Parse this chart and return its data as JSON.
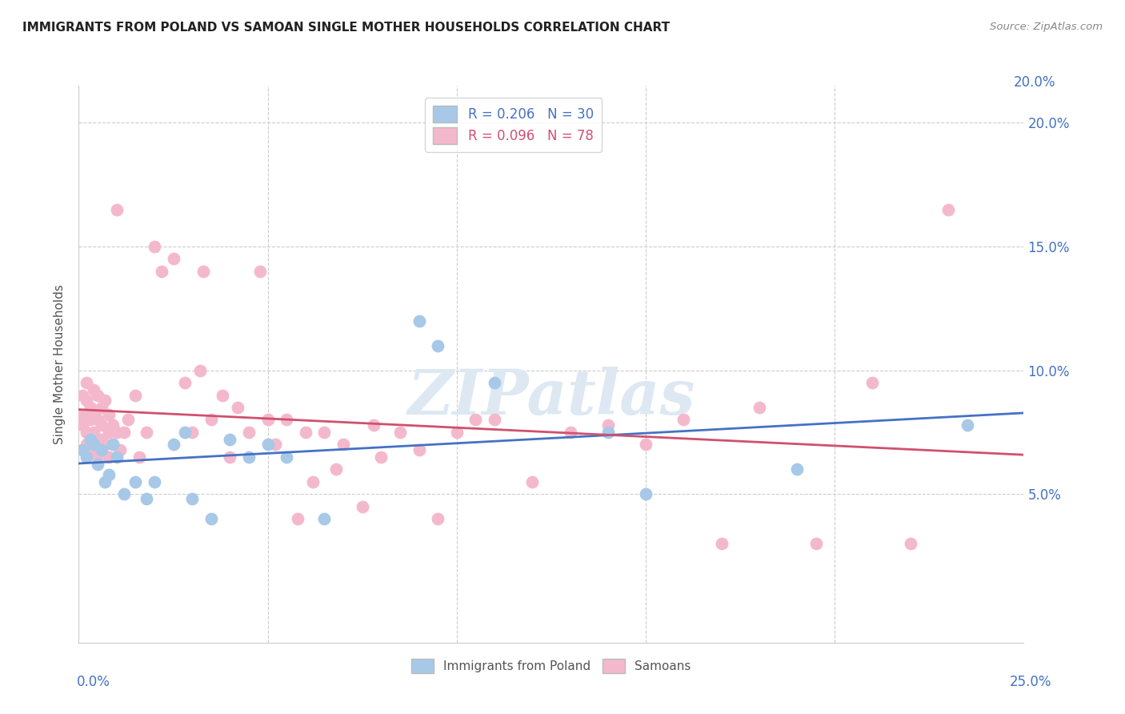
{
  "title": "IMMIGRANTS FROM POLAND VS SAMOAN SINGLE MOTHER HOUSEHOLDS CORRELATION CHART",
  "source": "Source: ZipAtlas.com",
  "ylabel": "Single Mother Households",
  "xlim": [
    0.0,
    0.25
  ],
  "ylim": [
    -0.01,
    0.215
  ],
  "xticks": [
    0.0,
    0.05,
    0.1,
    0.15,
    0.2,
    0.25
  ],
  "yticks": [
    0.05,
    0.1,
    0.15,
    0.2
  ],
  "right_yticklabels": [
    "5.0%",
    "10.0%",
    "15.0%",
    "20.0%"
  ],
  "top_ytick": "20.0%",
  "legend1_r": "R = 0.206",
  "legend1_n": "N = 30",
  "legend2_r": "R = 0.096",
  "legend2_n": "N = 78",
  "legend1_color": "#a8c8e8",
  "legend2_color": "#f4b8cc",
  "line1_color": "#4472c4",
  "line2_color": "#d05070",
  "scatter1_color": "#a8c8e8",
  "scatter2_color": "#f4b8cc",
  "background_color": "#ffffff",
  "grid_color": "#cccccc",
  "watermark": "ZIPatlas",
  "poland_x": [
    0.001,
    0.002,
    0.003,
    0.004,
    0.005,
    0.006,
    0.007,
    0.008,
    0.009,
    0.01,
    0.012,
    0.015,
    0.018,
    0.02,
    0.025,
    0.028,
    0.03,
    0.035,
    0.04,
    0.045,
    0.05,
    0.055,
    0.065,
    0.09,
    0.095,
    0.11,
    0.14,
    0.15,
    0.19,
    0.235
  ],
  "poland_y": [
    0.068,
    0.065,
    0.072,
    0.07,
    0.062,
    0.068,
    0.055,
    0.058,
    0.07,
    0.065,
    0.05,
    0.055,
    0.048,
    0.055,
    0.07,
    0.075,
    0.048,
    0.04,
    0.072,
    0.065,
    0.07,
    0.065,
    0.04,
    0.12,
    0.11,
    0.095,
    0.075,
    0.05,
    0.06,
    0.078
  ],
  "samoan_x": [
    0.001,
    0.001,
    0.001,
    0.002,
    0.002,
    0.002,
    0.002,
    0.003,
    0.003,
    0.003,
    0.004,
    0.004,
    0.004,
    0.004,
    0.005,
    0.005,
    0.005,
    0.005,
    0.006,
    0.006,
    0.006,
    0.007,
    0.007,
    0.008,
    0.008,
    0.008,
    0.009,
    0.009,
    0.01,
    0.01,
    0.011,
    0.012,
    0.013,
    0.015,
    0.016,
    0.018,
    0.02,
    0.022,
    0.025,
    0.028,
    0.03,
    0.032,
    0.033,
    0.035,
    0.038,
    0.04,
    0.042,
    0.045,
    0.048,
    0.05,
    0.052,
    0.055,
    0.058,
    0.06,
    0.062,
    0.065,
    0.068,
    0.07,
    0.075,
    0.078,
    0.08,
    0.085,
    0.09,
    0.095,
    0.1,
    0.105,
    0.11,
    0.12,
    0.13,
    0.14,
    0.15,
    0.16,
    0.17,
    0.18,
    0.195,
    0.21,
    0.22,
    0.23
  ],
  "samoan_y": [
    0.078,
    0.082,
    0.09,
    0.07,
    0.075,
    0.088,
    0.095,
    0.072,
    0.08,
    0.085,
    0.068,
    0.075,
    0.082,
    0.092,
    0.065,
    0.07,
    0.08,
    0.09,
    0.072,
    0.085,
    0.078,
    0.07,
    0.088,
    0.065,
    0.075,
    0.082,
    0.07,
    0.078,
    0.075,
    0.165,
    0.068,
    0.075,
    0.08,
    0.09,
    0.065,
    0.075,
    0.15,
    0.14,
    0.145,
    0.095,
    0.075,
    0.1,
    0.14,
    0.08,
    0.09,
    0.065,
    0.085,
    0.075,
    0.14,
    0.08,
    0.07,
    0.08,
    0.04,
    0.075,
    0.055,
    0.075,
    0.06,
    0.07,
    0.045,
    0.078,
    0.065,
    0.075,
    0.068,
    0.04,
    0.075,
    0.08,
    0.08,
    0.055,
    0.075,
    0.078,
    0.07,
    0.08,
    0.03,
    0.085,
    0.03,
    0.095,
    0.03,
    0.165
  ]
}
